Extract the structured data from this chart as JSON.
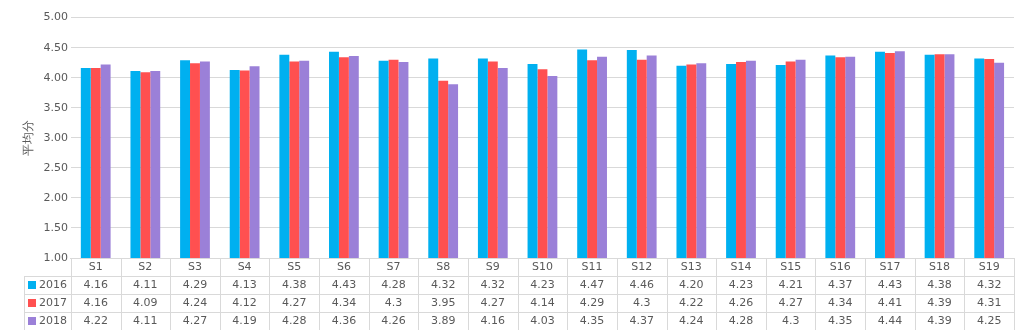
{
  "chart_data": {
    "type": "bar",
    "ylabel": "平均分",
    "categories": [
      "S1",
      "S2",
      "S3",
      "S4",
      "S5",
      "S6",
      "S7",
      "S8",
      "S9",
      "S10",
      "S11",
      "S12",
      "S13",
      "S14",
      "S15",
      "S16",
      "S17",
      "S18",
      "S19"
    ],
    "series": [
      {
        "name": "2016",
        "color": "#00b0f0",
        "values": [
          4.16,
          4.11,
          4.29,
          4.13,
          4.38,
          4.43,
          4.28,
          4.32,
          4.32,
          4.23,
          4.47,
          4.46,
          4.2,
          4.23,
          4.21,
          4.37,
          4.43,
          4.38,
          4.32
        ],
        "value_labels": [
          "4.16",
          "4.11",
          "4.29",
          "4.13",
          "4.38",
          "4.43",
          "4.28",
          "4.32",
          "4.32",
          "4.23",
          "4.47",
          "4.46",
          "4.20",
          "4.23",
          "4.21",
          "4.37",
          "4.43",
          "4.38",
          "4.32"
        ]
      },
      {
        "name": "2017",
        "color": "#ff5050",
        "values": [
          4.16,
          4.09,
          4.24,
          4.12,
          4.27,
          4.34,
          4.3,
          3.95,
          4.27,
          4.14,
          4.29,
          4.3,
          4.22,
          4.26,
          4.27,
          4.34,
          4.41,
          4.39,
          4.31
        ],
        "value_labels": [
          "4.16",
          "4.09",
          "4.24",
          "4.12",
          "4.27",
          "4.34",
          "4.3",
          "3.95",
          "4.27",
          "4.14",
          "4.29",
          "4.3",
          "4.22",
          "4.26",
          "4.27",
          "4.34",
          "4.41",
          "4.39",
          "4.31"
        ]
      },
      {
        "name": "2018",
        "color": "#9b80d8",
        "values": [
          4.22,
          4.11,
          4.27,
          4.19,
          4.28,
          4.36,
          4.26,
          3.89,
          4.16,
          4.03,
          4.35,
          4.37,
          4.24,
          4.28,
          4.3,
          4.35,
          4.44,
          4.39,
          4.25
        ],
        "value_labels": [
          "4.22",
          "4.11",
          "4.27",
          "4.19",
          "4.28",
          "4.36",
          "4.26",
          "3.89",
          "4.16",
          "4.03",
          "4.35",
          "4.37",
          "4.24",
          "4.28",
          "4.3",
          "4.35",
          "4.44",
          "4.39",
          "4.25"
        ]
      }
    ],
    "ylim": [
      1,
      5
    ],
    "yticks": [
      {
        "value": 1,
        "label": "1.00"
      },
      {
        "value": 1.5,
        "label": "1.50"
      },
      {
        "value": 2,
        "label": "2.00"
      },
      {
        "value": 2.5,
        "label": "2.50"
      },
      {
        "value": 3,
        "label": "3.00"
      },
      {
        "value": 3.5,
        "label": "3.50"
      },
      {
        "value": 4,
        "label": "4.00"
      },
      {
        "value": 4.5,
        "label": "4.50"
      },
      {
        "value": 5,
        "label": "5.00"
      }
    ],
    "grid": "y",
    "legend": "bottom"
  }
}
